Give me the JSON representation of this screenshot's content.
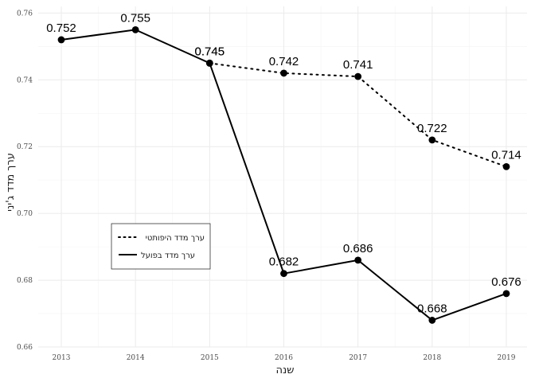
{
  "chart_data": {
    "type": "line",
    "title": "",
    "xlabel": "שנה",
    "ylabel": "ערך מדד ג'יני",
    "x": [
      2013,
      2014,
      2015,
      2016,
      2017,
      2018,
      2019
    ],
    "x_tick_labels": [
      "2013",
      "2014",
      "2015",
      "2016",
      "2017",
      "2018",
      "2019"
    ],
    "ylim": [
      0.66,
      0.762
    ],
    "y_ticks": [
      0.66,
      0.68,
      0.7,
      0.72,
      0.74,
      0.76
    ],
    "y_tick_labels": [
      "0.66",
      "0.68",
      "0.70",
      "0.72",
      "0.74",
      "0.76"
    ],
    "grid": true,
    "legend_position": "bottom-left",
    "series": [
      {
        "name": "ערך מדד היפותטי",
        "line_style": "dotted",
        "color": "#000000",
        "x": [
          2015,
          2016,
          2017,
          2018,
          2019
        ],
        "values": [
          0.745,
          0.742,
          0.741,
          0.722,
          0.714
        ],
        "labels": [
          "0.745",
          "0.742",
          "0.741",
          "0.722",
          "0.714"
        ]
      },
      {
        "name": "ערך מדד בפועל",
        "line_style": "solid",
        "color": "#000000",
        "x": [
          2013,
          2014,
          2015,
          2016,
          2017,
          2018,
          2019
        ],
        "values": [
          0.752,
          0.755,
          0.745,
          0.682,
          0.686,
          0.668,
          0.676
        ],
        "labels": [
          "0.752",
          "0.755",
          "0.745",
          "0.682",
          "0.686",
          "0.668",
          "0.676"
        ]
      }
    ]
  }
}
